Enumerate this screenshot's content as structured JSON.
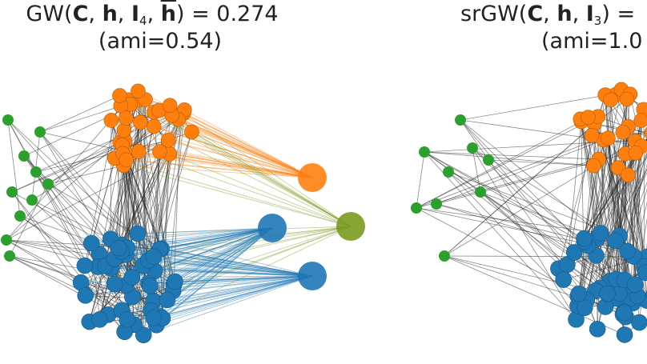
{
  "left_panel": {
    "title_prefix": "GW(",
    "title_C": "C",
    "title_sep1": ", ",
    "title_h": "h",
    "title_sep2": ", ",
    "title_I": "I",
    "title_I_sub": "4",
    "title_sep3": ", ",
    "title_hbar": "h",
    "title_suffix": ") = 0.274",
    "subtitle": "(ami=0.54)"
  },
  "right_panel": {
    "title_prefix": "srGW(",
    "title_C": "C",
    "title_sep1": ", ",
    "title_h": "h",
    "title_sep2": ", ",
    "title_I": "I",
    "title_I_sub": "3",
    "title_suffix": ") =",
    "subtitle": "(ami=1.0"
  },
  "colors": {
    "orange": "#ff7f0e",
    "blue": "#1f77b4",
    "green": "#2ca02c",
    "olive": "#7a9a1f",
    "edge": "#2a2a2a"
  }
}
